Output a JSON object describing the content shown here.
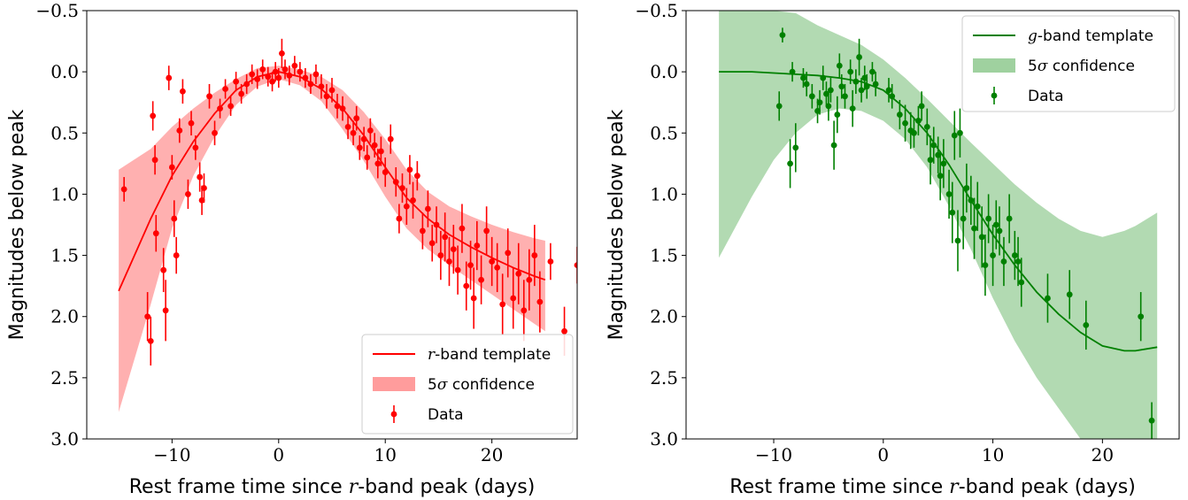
{
  "chart_data": [
    {
      "type": "scatter",
      "panel": "left",
      "title": "",
      "xlabel_prefix": "Rest frame time since ",
      "xlabel_var": "r",
      "xlabel_suffix": "-band peak (days)",
      "ylabel": "Magnitudes below peak",
      "xlim": [
        -18,
        28
      ],
      "ylim": [
        3.0,
        -0.5
      ],
      "y_inverted": true,
      "xticks": [
        -10,
        0,
        10,
        20
      ],
      "xtick_labels": [
        "−10",
        "0",
        "10",
        "20"
      ],
      "yticks": [
        -0.5,
        0.0,
        0.5,
        1.0,
        1.5,
        2.0,
        2.5,
        3.0
      ],
      "ytick_labels": [
        "−0.5",
        "0.0",
        "0.5",
        "1.0",
        "1.5",
        "2.0",
        "2.5",
        "3.0"
      ],
      "legend_placement": "lower-right",
      "color": "#ff0000",
      "band_color": "#ff9c9c",
      "legend": {
        "template_var": "r",
        "template_suffix": "-band template",
        "confidence_prefix": "5",
        "confidence_sym": "σ",
        "confidence_suffix": " confidence",
        "data": "Data"
      },
      "template": {
        "x": [
          -15,
          -12,
          -10,
          -8,
          -6,
          -4,
          -2,
          0,
          2,
          4,
          6,
          8,
          10,
          12,
          14,
          16,
          18,
          20,
          22,
          24,
          25
        ],
        "y": [
          1.79,
          1.2,
          0.85,
          0.57,
          0.34,
          0.15,
          0.04,
          0.0,
          0.04,
          0.14,
          0.3,
          0.52,
          0.78,
          1.03,
          1.2,
          1.33,
          1.43,
          1.52,
          1.6,
          1.67,
          1.7
        ]
      },
      "band": {
        "x": [
          -15,
          -12,
          -10,
          -8,
          -6,
          -4,
          -2,
          0,
          2,
          4,
          6,
          8,
          10,
          12,
          14,
          16,
          18,
          20,
          22,
          24,
          25
        ],
        "lower": [
          0.8,
          0.63,
          0.45,
          0.3,
          0.17,
          0.06,
          -0.03,
          -0.05,
          -0.02,
          0.04,
          0.15,
          0.33,
          0.55,
          0.8,
          0.98,
          1.1,
          1.18,
          1.25,
          1.31,
          1.36,
          1.38
        ],
        "upper": [
          2.78,
          1.9,
          1.28,
          0.85,
          0.53,
          0.27,
          0.12,
          0.06,
          0.11,
          0.24,
          0.47,
          0.73,
          1.02,
          1.28,
          1.45,
          1.58,
          1.7,
          1.82,
          1.94,
          2.06,
          2.12
        ]
      },
      "points": [
        [
          -14.5,
          0.96,
          0.1
        ],
        [
          -12.3,
          2.0,
          0.2
        ],
        [
          -12.0,
          2.2,
          0.2
        ],
        [
          -11.8,
          0.36,
          0.12
        ],
        [
          -11.6,
          0.72,
          0.12
        ],
        [
          -11.5,
          1.32,
          0.15
        ],
        [
          -10.8,
          1.62,
          0.18
        ],
        [
          -10.6,
          1.95,
          0.25
        ],
        [
          -10.3,
          0.05,
          0.1
        ],
        [
          -10.0,
          0.78,
          0.1
        ],
        [
          -9.8,
          1.2,
          0.15
        ],
        [
          -9.6,
          1.5,
          0.15
        ],
        [
          -9.3,
          0.48,
          0.1
        ],
        [
          -9.0,
          0.16,
          0.1
        ],
        [
          -8.5,
          1.0,
          0.12
        ],
        [
          -8.2,
          0.42,
          0.1
        ],
        [
          -7.8,
          0.62,
          0.1
        ],
        [
          -7.4,
          0.86,
          0.12
        ],
        [
          -7.2,
          1.05,
          0.12
        ],
        [
          -7.0,
          0.95,
          0.12
        ],
        [
          -6.5,
          0.2,
          0.1
        ],
        [
          -6.0,
          0.5,
          0.1
        ],
        [
          -5.5,
          0.3,
          0.08
        ],
        [
          -5.0,
          0.14,
          0.08
        ],
        [
          -4.5,
          0.28,
          0.08
        ],
        [
          -4.0,
          0.08,
          0.08
        ],
        [
          -3.5,
          0.18,
          0.08
        ],
        [
          -3.0,
          0.1,
          0.08
        ],
        [
          -2.5,
          0.02,
          0.08
        ],
        [
          -2.0,
          0.06,
          0.08
        ],
        [
          -1.5,
          -0.02,
          0.08
        ],
        [
          -1.0,
          0.04,
          0.08
        ],
        [
          -0.6,
          0.08,
          0.08
        ],
        [
          -0.3,
          0.0,
          0.08
        ],
        [
          0.0,
          0.05,
          0.08
        ],
        [
          0.3,
          -0.15,
          0.12
        ],
        [
          0.6,
          -0.02,
          0.08
        ],
        [
          1.0,
          0.03,
          0.08
        ],
        [
          1.5,
          -0.05,
          0.08
        ],
        [
          2.0,
          0.0,
          0.08
        ],
        [
          2.5,
          0.05,
          0.08
        ],
        [
          3.0,
          0.1,
          0.08
        ],
        [
          3.5,
          0.02,
          0.08
        ],
        [
          4.0,
          0.12,
          0.1
        ],
        [
          4.5,
          0.2,
          0.1
        ],
        [
          5.0,
          0.15,
          0.1
        ],
        [
          5.5,
          0.28,
          0.1
        ],
        [
          6.0,
          0.3,
          0.1
        ],
        [
          6.5,
          0.45,
          0.1
        ],
        [
          7.0,
          0.5,
          0.1
        ],
        [
          7.3,
          0.38,
          0.1
        ],
        [
          7.6,
          0.62,
          0.1
        ],
        [
          8.0,
          0.55,
          0.1
        ],
        [
          8.3,
          0.7,
          0.1
        ],
        [
          8.6,
          0.48,
          0.1
        ],
        [
          9.0,
          0.6,
          0.1
        ],
        [
          9.3,
          0.75,
          0.12
        ],
        [
          9.6,
          0.65,
          0.12
        ],
        [
          10.0,
          0.82,
          0.12
        ],
        [
          10.5,
          0.55,
          0.12
        ],
        [
          11.0,
          0.9,
          0.12
        ],
        [
          11.3,
          1.2,
          0.12
        ],
        [
          11.6,
          0.95,
          0.12
        ],
        [
          12.0,
          1.1,
          0.15
        ],
        [
          12.3,
          0.8,
          0.12
        ],
        [
          12.6,
          1.05,
          0.15
        ],
        [
          13.0,
          0.85,
          0.12
        ],
        [
          13.5,
          1.3,
          0.15
        ],
        [
          14.0,
          1.12,
          0.15
        ],
        [
          14.4,
          1.4,
          0.15
        ],
        [
          14.8,
          1.25,
          0.15
        ],
        [
          15.2,
          1.5,
          0.2
        ],
        [
          15.6,
          1.35,
          0.2
        ],
        [
          16.0,
          1.55,
          0.2
        ],
        [
          16.4,
          1.45,
          0.2
        ],
        [
          16.8,
          1.62,
          0.2
        ],
        [
          17.2,
          1.28,
          0.2
        ],
        [
          17.6,
          1.75,
          0.2
        ],
        [
          18.0,
          1.58,
          0.2
        ],
        [
          18.3,
          1.85,
          0.25
        ],
        [
          18.6,
          1.42,
          0.2
        ],
        [
          19.0,
          1.7,
          0.2
        ],
        [
          19.5,
          1.3,
          0.2
        ],
        [
          20.0,
          1.55,
          0.2
        ],
        [
          20.5,
          1.6,
          0.2
        ],
        [
          21.0,
          1.9,
          0.25
        ],
        [
          21.5,
          1.48,
          0.2
        ],
        [
          22.0,
          1.85,
          0.25
        ],
        [
          22.5,
          1.65,
          0.25
        ],
        [
          23.0,
          1.95,
          0.25
        ],
        [
          23.5,
          1.7,
          0.25
        ],
        [
          24.0,
          1.5,
          0.25
        ],
        [
          24.5,
          1.88,
          0.25
        ],
        [
          25.5,
          1.55,
          0.15
        ],
        [
          26.8,
          2.12,
          0.2
        ],
        [
          28.0,
          1.58,
          0.15
        ]
      ]
    },
    {
      "type": "scatter",
      "panel": "right",
      "title": "",
      "xlabel_prefix": "Rest frame time since ",
      "xlabel_var": "r",
      "xlabel_suffix": "-band peak (days)",
      "ylabel": "Magnitudes below peak",
      "xlim": [
        -18,
        27
      ],
      "ylim": [
        3.0,
        -0.5
      ],
      "y_inverted": true,
      "xticks": [
        -10,
        0,
        10,
        20
      ],
      "xtick_labels": [
        "−10",
        "0",
        "10",
        "20"
      ],
      "yticks": [
        -0.5,
        0.0,
        0.5,
        1.0,
        1.5,
        2.0,
        2.5,
        3.0
      ],
      "ytick_labels": [
        "−0.5",
        "0.0",
        "0.5",
        "1.0",
        "1.5",
        "2.0",
        "2.5",
        "3.0"
      ],
      "legend_placement": "upper-right",
      "color": "#008000",
      "band_color": "#9fd19f",
      "legend": {
        "template_var": "g",
        "template_suffix": "-band template",
        "confidence_prefix": "5",
        "confidence_sym": "σ",
        "confidence_suffix": " confidence",
        "data": "Data"
      },
      "template": {
        "x": [
          -15,
          -12,
          -10,
          -8,
          -6,
          -4,
          -2,
          0,
          2,
          4,
          6,
          8,
          10,
          12,
          14,
          16,
          18,
          20,
          22,
          23,
          25
        ],
        "y": [
          0.0,
          0.0,
          0.01,
          0.02,
          0.03,
          0.05,
          0.08,
          0.15,
          0.3,
          0.5,
          0.76,
          1.05,
          1.33,
          1.58,
          1.8,
          1.98,
          2.13,
          2.24,
          2.28,
          2.28,
          2.25
        ]
      },
      "band": {
        "x": [
          -15,
          -12,
          -10,
          -8,
          -6,
          -4,
          -2,
          0,
          2,
          4,
          6,
          8,
          10,
          12,
          14,
          16,
          18,
          20,
          22,
          23,
          25
        ],
        "lower": [
          -0.5,
          -0.5,
          -0.5,
          -0.48,
          -0.38,
          -0.3,
          -0.22,
          -0.1,
          0.05,
          0.22,
          0.4,
          0.58,
          0.75,
          0.92,
          1.07,
          1.2,
          1.3,
          1.35,
          1.3,
          1.26,
          1.15
        ],
        "upper": [
          1.52,
          1.02,
          0.72,
          0.5,
          0.35,
          0.3,
          0.32,
          0.4,
          0.55,
          0.78,
          1.1,
          1.45,
          1.85,
          2.2,
          2.5,
          2.75,
          3.0,
          3.2,
          3.3,
          3.32,
          3.35
        ]
      },
      "points": [
        [
          -9.5,
          0.28,
          0.12
        ],
        [
          -9.2,
          -0.3,
          0.06
        ],
        [
          -8.5,
          0.75,
          0.2
        ],
        [
          -8.3,
          0.0,
          0.08
        ],
        [
          -8.0,
          0.62,
          0.2
        ],
        [
          -7.3,
          0.05,
          0.08
        ],
        [
          -7.0,
          0.1,
          0.1
        ],
        [
          -6.5,
          0.2,
          0.1
        ],
        [
          -6.0,
          0.32,
          0.1
        ],
        [
          -5.8,
          0.25,
          0.1
        ],
        [
          -5.5,
          0.05,
          0.1
        ],
        [
          -5.2,
          0.18,
          0.1
        ],
        [
          -5.0,
          0.28,
          0.12
        ],
        [
          -4.8,
          0.15,
          0.1
        ],
        [
          -4.5,
          0.6,
          0.2
        ],
        [
          -4.2,
          0.35,
          0.15
        ],
        [
          -4.0,
          -0.05,
          0.1
        ],
        [
          -3.8,
          0.12,
          0.1
        ],
        [
          -3.5,
          0.2,
          0.1
        ],
        [
          -3.0,
          0.0,
          0.1
        ],
        [
          -2.8,
          0.3,
          0.15
        ],
        [
          -2.5,
          0.08,
          0.1
        ],
        [
          -2.2,
          -0.12,
          0.15
        ],
        [
          -2.0,
          0.15,
          0.1
        ],
        [
          -1.7,
          0.05,
          0.1
        ],
        [
          -1.5,
          0.12,
          0.1
        ],
        [
          -1.0,
          0.0,
          0.08
        ],
        [
          -0.7,
          0.1,
          0.1
        ],
        [
          0.5,
          0.15,
          0.1
        ],
        [
          0.8,
          0.2,
          0.1
        ],
        [
          1.5,
          0.35,
          0.12
        ],
        [
          2.0,
          0.42,
          0.15
        ],
        [
          2.5,
          0.48,
          0.15
        ],
        [
          2.8,
          0.5,
          0.12
        ],
        [
          3.2,
          0.4,
          0.12
        ],
        [
          3.5,
          0.28,
          0.12
        ],
        [
          4.0,
          0.45,
          0.15
        ],
        [
          4.3,
          0.72,
          0.2
        ],
        [
          4.6,
          0.6,
          0.15
        ],
        [
          5.0,
          0.68,
          0.15
        ],
        [
          5.2,
          0.85,
          0.2
        ],
        [
          5.5,
          0.75,
          0.2
        ],
        [
          6.0,
          1.0,
          0.2
        ],
        [
          6.3,
          1.15,
          0.25
        ],
        [
          6.5,
          0.52,
          0.2
        ],
        [
          6.8,
          1.38,
          0.25
        ],
        [
          7.0,
          0.5,
          0.2
        ],
        [
          7.3,
          1.2,
          0.25
        ],
        [
          7.6,
          0.95,
          0.2
        ],
        [
          8.0,
          1.05,
          0.2
        ],
        [
          8.3,
          1.28,
          0.25
        ],
        [
          8.6,
          1.1,
          0.2
        ],
        [
          9.0,
          1.35,
          0.25
        ],
        [
          9.3,
          1.58,
          0.25
        ],
        [
          9.6,
          1.2,
          0.2
        ],
        [
          10.0,
          1.5,
          0.25
        ],
        [
          10.3,
          1.25,
          0.2
        ],
        [
          10.6,
          1.3,
          0.2
        ],
        [
          11.0,
          1.55,
          0.2
        ],
        [
          11.5,
          1.2,
          0.2
        ],
        [
          12.0,
          1.5,
          0.2
        ],
        [
          12.3,
          1.55,
          0.2
        ],
        [
          12.6,
          1.72,
          0.2
        ],
        [
          15.0,
          1.85,
          0.2
        ],
        [
          17.0,
          1.82,
          0.2
        ],
        [
          18.5,
          2.07,
          0.2
        ],
        [
          23.5,
          2.0,
          0.2
        ],
        [
          24.5,
          2.85,
          0.15
        ]
      ]
    }
  ]
}
